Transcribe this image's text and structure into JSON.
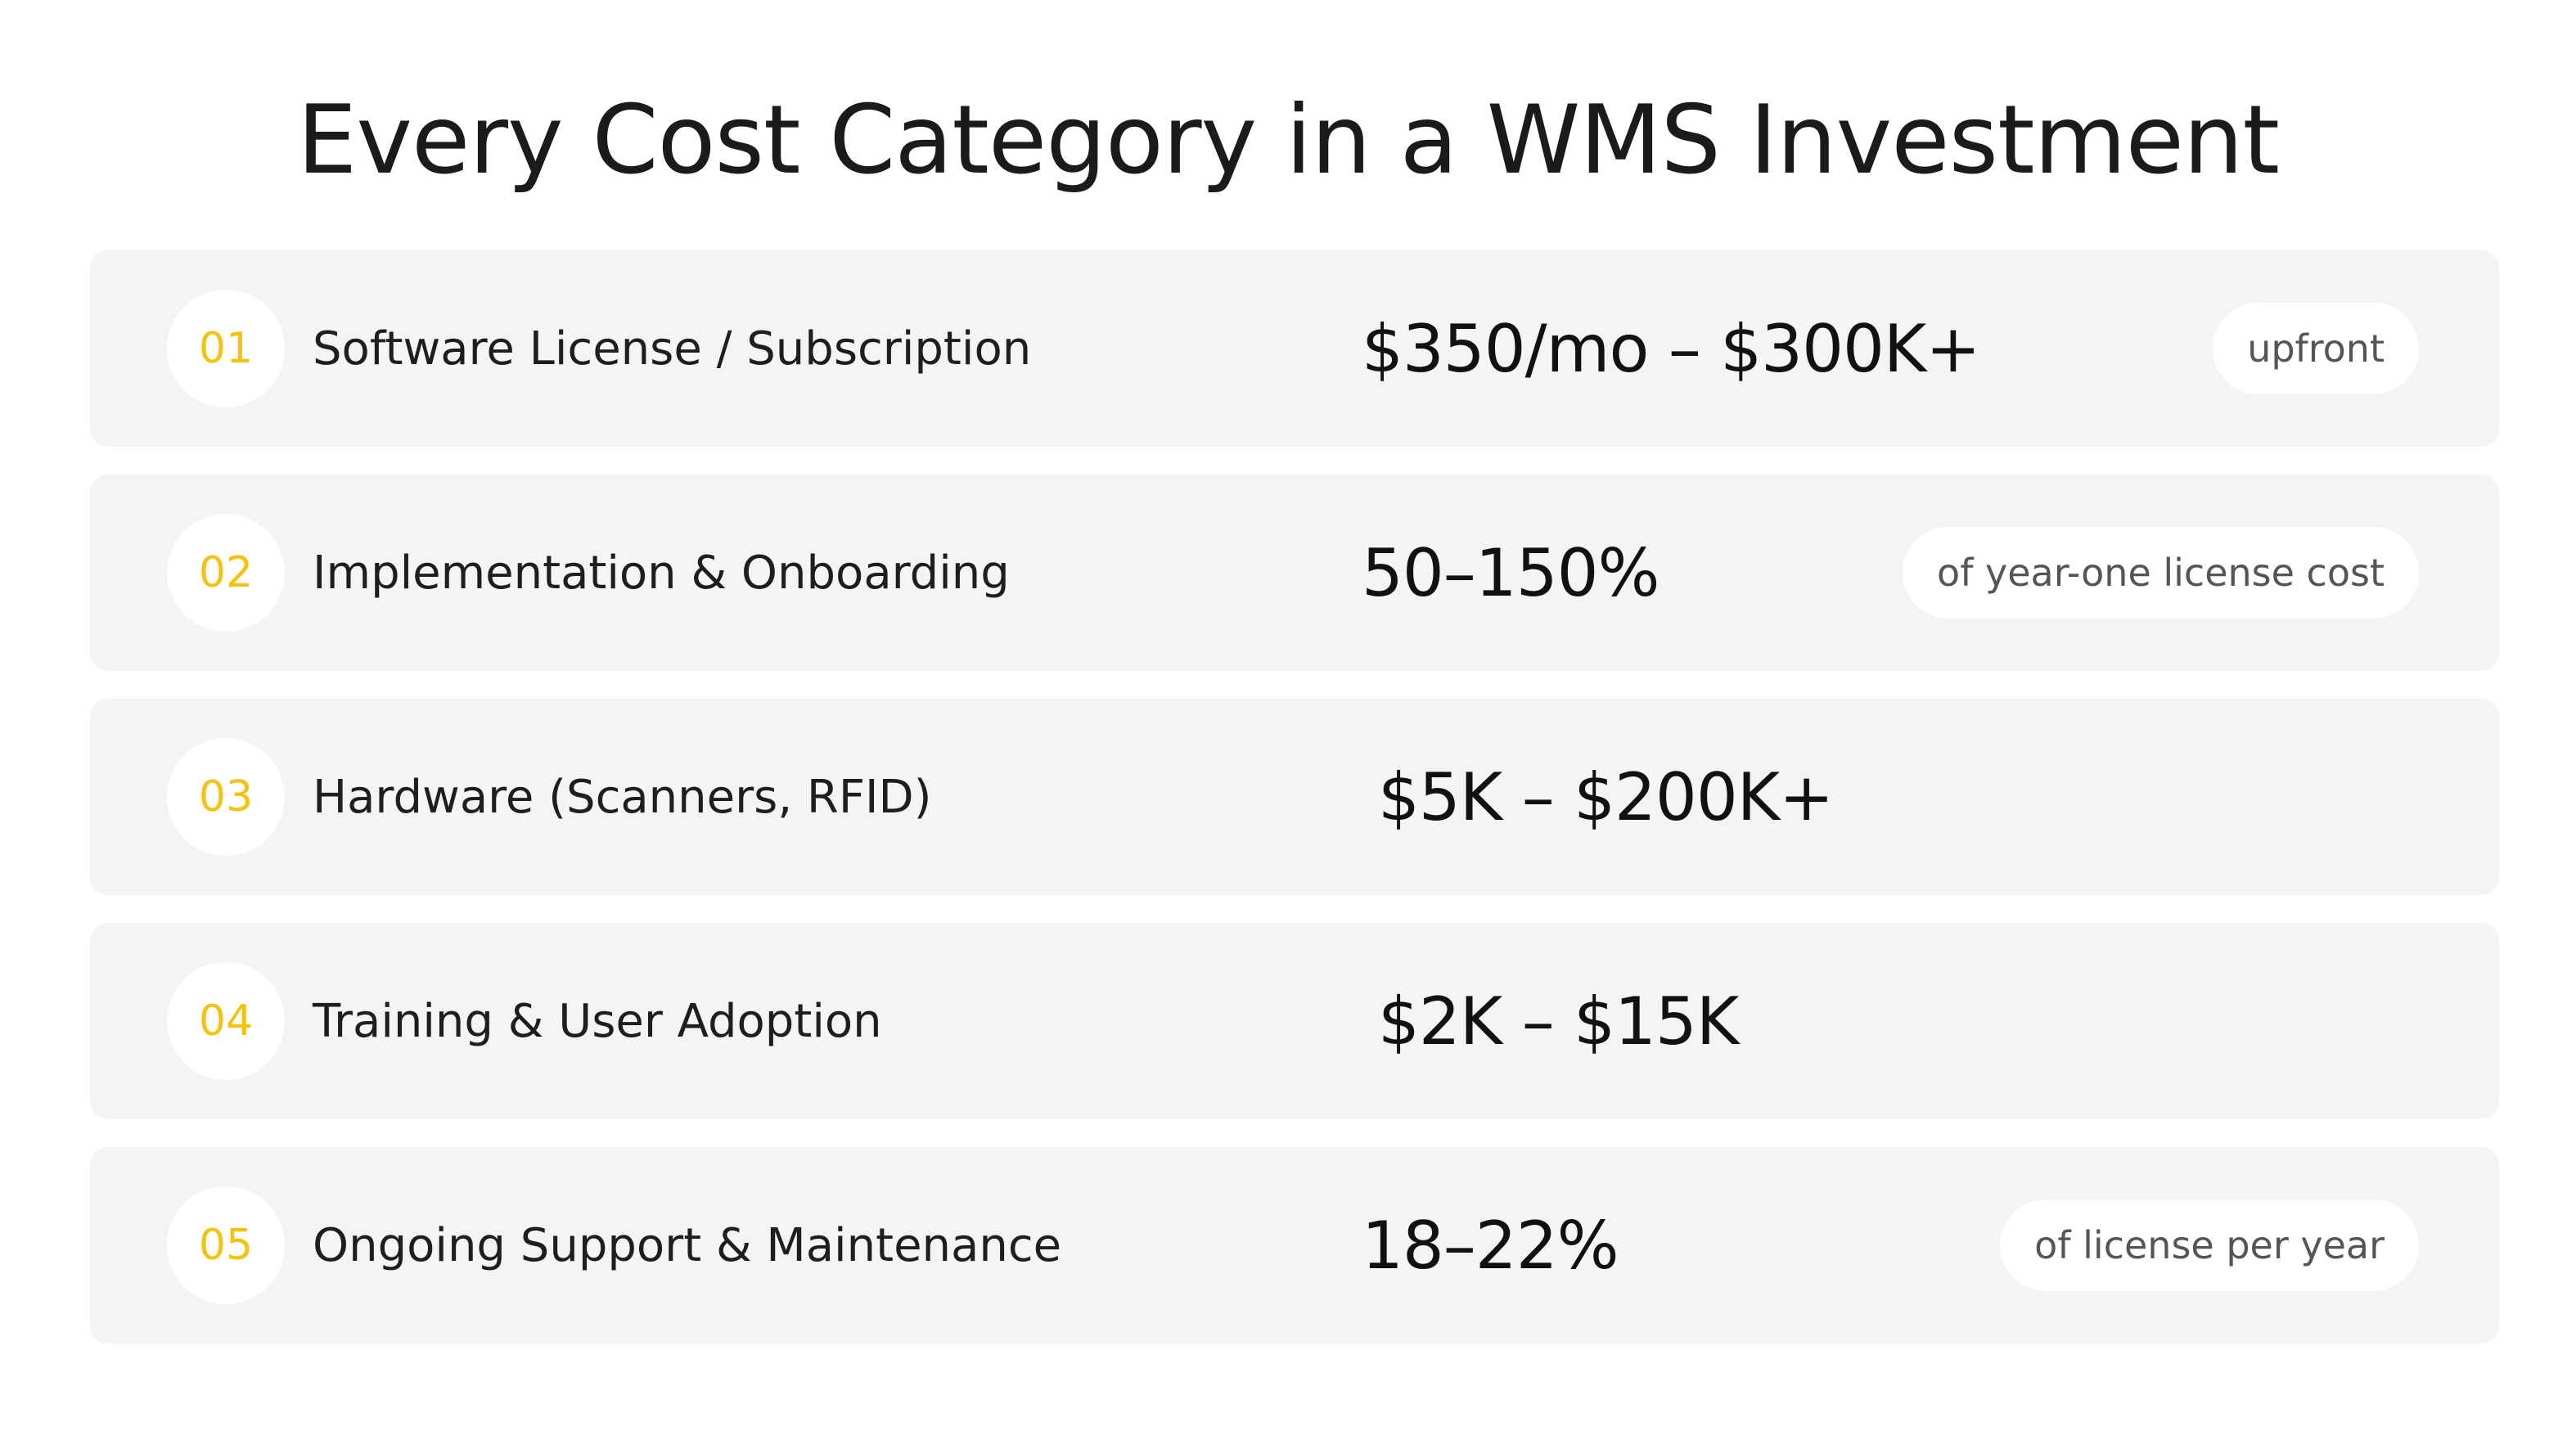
{
  "title": "Every Cost Category in a WMS Investment",
  "colors": {
    "accent": "#f5c20c",
    "row_background": "#f4f4f4",
    "pill_background": "#ffffff"
  },
  "rows": [
    {
      "number": "01",
      "label": "Software License / Subscription",
      "value": "$350/mo – $300K+",
      "note": "upfront"
    },
    {
      "number": "02",
      "label": "Implementation & Onboarding",
      "value": "50–150%",
      "note": "of year-one license cost"
    },
    {
      "number": "03",
      "label": "Hardware (Scanners, RFID)",
      "value": "$5K – $200K+",
      "note": ""
    },
    {
      "number": "04",
      "label": "Training & User Adoption",
      "value": "$2K – $15K",
      "note": ""
    },
    {
      "number": "05",
      "label": "Ongoing Support & Maintenance",
      "value": "18–22%",
      "note": "of license per year"
    }
  ]
}
